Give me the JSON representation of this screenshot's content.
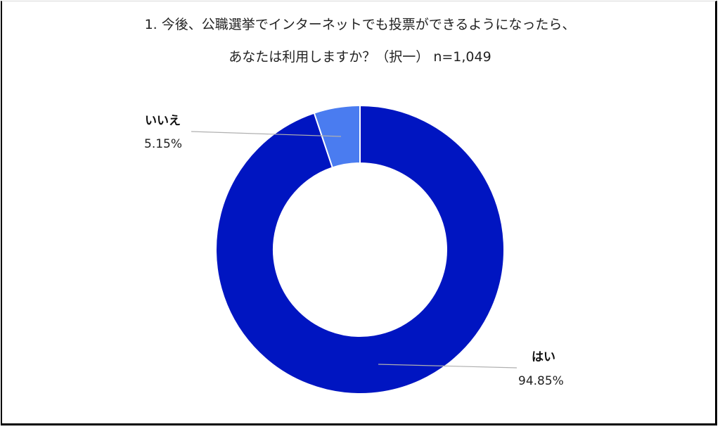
{
  "chart_data": {
    "type": "pie",
    "subtype": "donut",
    "title": "1. 今後、公職選挙でインターネットでも投票ができるようになったら、あなたは利用しますか？（択一） n=1,049",
    "title_lines": [
      "1. 今後、公職選挙でインターネットでも投票ができるようになったら、",
      "あなたは利用しますか？（択一） n=1,049"
    ],
    "categories": [
      "はい",
      "いいえ"
    ],
    "values": [
      94.85,
      5.15
    ],
    "value_labels": [
      "94.85%",
      "5.15%"
    ],
    "colors": [
      "#0015c1",
      "#4a7cf0"
    ],
    "legend": "none (data labels with leader lines)",
    "n": 1049
  },
  "labels": {
    "yes": {
      "name": "はい",
      "value": "94.85%"
    },
    "no": {
      "name": "いいえ",
      "value": "5.15%"
    }
  }
}
